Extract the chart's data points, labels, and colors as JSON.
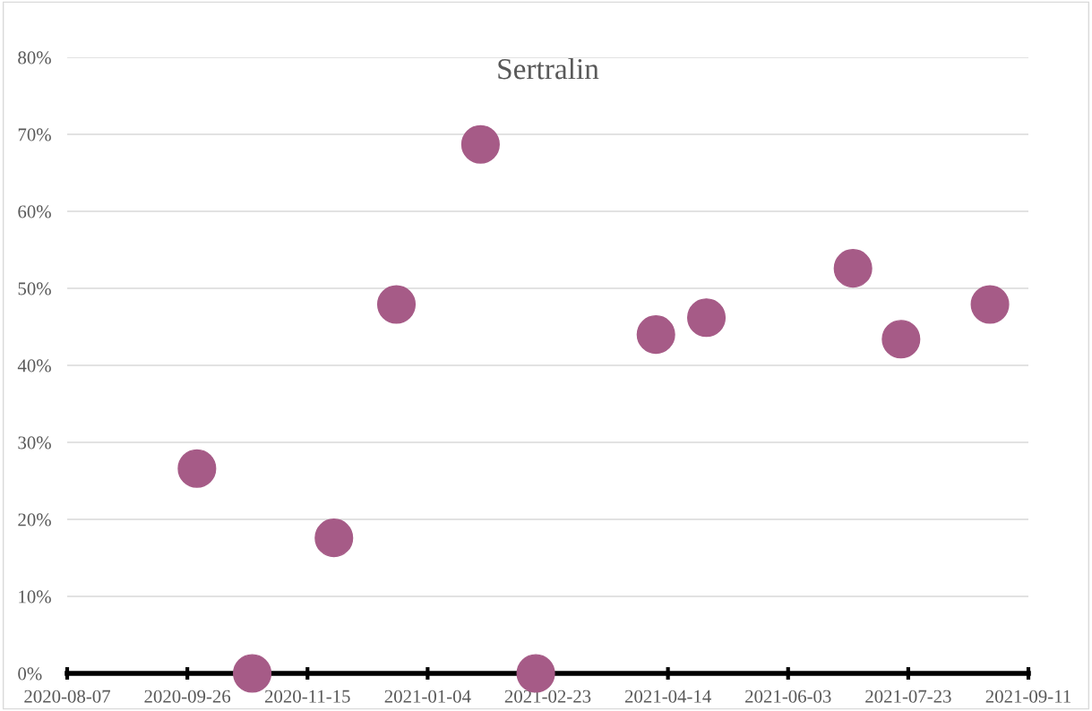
{
  "chart_data": {
    "type": "scatter",
    "title": "Sertralin",
    "x": [
      "2020-09-30",
      "2020-10-23",
      "2020-11-26",
      "2020-12-22",
      "2021-01-26",
      "2021-02-18",
      "2021-04-09",
      "2021-04-30",
      "2021-06-30",
      "2021-07-20",
      "2021-08-26"
    ],
    "series": [
      {
        "color": "#a65b87",
        "values": [
          26.6,
          0,
          17.6,
          47.9,
          68.7,
          0,
          44.0,
          46.2,
          52.6,
          43.4,
          47.9
        ]
      }
    ],
    "xlim": [
      "2020-08-07",
      "2021-09-11"
    ],
    "xticks": [
      "2020-08-07",
      "2020-09-26",
      "2020-11-15",
      "2021-01-04",
      "2021-02-23",
      "2021-04-14",
      "2021-06-03",
      "2021-07-23",
      "2021-09-11"
    ],
    "ylim": [
      0,
      80
    ],
    "yticks": [
      {
        "value": 0,
        "label": "0%"
      },
      {
        "value": 10,
        "label": "10%"
      },
      {
        "value": 20,
        "label": "20%"
      },
      {
        "value": 30,
        "label": "30%"
      },
      {
        "value": 40,
        "label": "40%"
      },
      {
        "value": 50,
        "label": "50%"
      },
      {
        "value": 60,
        "label": "60%"
      },
      {
        "value": 70,
        "label": "70%"
      },
      {
        "value": 80,
        "label": "80%"
      }
    ],
    "grid": "y",
    "marker": "circle",
    "legend": false
  }
}
